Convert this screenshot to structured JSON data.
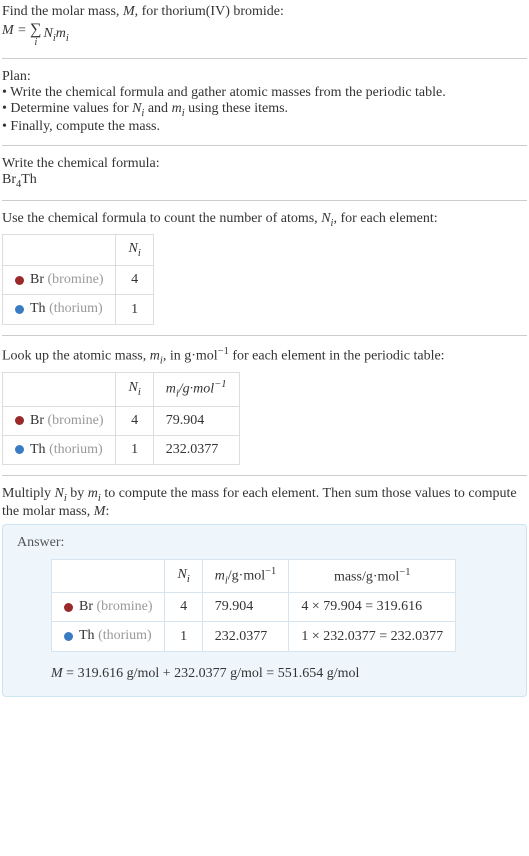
{
  "intro": {
    "line1_pre": "Find the molar mass, ",
    "line1_M": "M",
    "line1_post": ", for thorium(IV) bromide:",
    "eq_lhs": "M",
    "eq_eq": " = ",
    "eq_sigma": "∑",
    "eq_idx": "i",
    "eq_rhs_N": "N",
    "eq_rhs_Ni": "i",
    "eq_rhs_m": "m",
    "eq_rhs_mi": "i"
  },
  "plan": {
    "title": "Plan:",
    "b1": "• Write the chemical formula and gather atomic masses from the periodic table.",
    "b2_pre": "• Determine values for ",
    "b2_N": "N",
    "b2_Ni": "i",
    "b2_mid": " and ",
    "b2_m": "m",
    "b2_mi": "i",
    "b2_post": " using these items.",
    "b3": "• Finally, compute the mass."
  },
  "formula": {
    "title": "Write the chemical formula:",
    "part1": "Br",
    "sub1": "4",
    "part2": "Th"
  },
  "count": {
    "text_pre": "Use the chemical formula to count the number of atoms, ",
    "N": "N",
    "Ni": "i",
    "text_post": ", for each element:",
    "header_N": "N",
    "header_Ni": "i",
    "rows": [
      {
        "dot_color": "#9a2a2a",
        "sym": "Br",
        "name": "(bromine)",
        "n": "4"
      },
      {
        "dot_color": "#3a7cc4",
        "sym": "Th",
        "name": "(thorium)",
        "n": "1"
      }
    ]
  },
  "mass": {
    "text_pre": "Look up the atomic mass, ",
    "m": "m",
    "mi": "i",
    "text_mid": ", in g·mol",
    "text_sup": "−1",
    "text_post": " for each element in the periodic table:",
    "h_N": "N",
    "h_Ni": "i",
    "h_m": "m",
    "h_mi": "i",
    "h_unit_pre": "/g·mol",
    "h_unit_sup": "−1",
    "rows": [
      {
        "dot_color": "#9a2a2a",
        "sym": "Br",
        "name": "(bromine)",
        "n": "4",
        "m": "79.904"
      },
      {
        "dot_color": "#3a7cc4",
        "sym": "Th",
        "name": "(thorium)",
        "n": "1",
        "m": "232.0377"
      }
    ]
  },
  "compute": {
    "text_pre": "Multiply ",
    "N": "N",
    "Ni": "i",
    "text_mid1": " by ",
    "m": "m",
    "mi": "i",
    "text_mid2": " to compute the mass for each element. Then sum those values to compute the molar mass, ",
    "M": "M",
    "text_post": ":"
  },
  "answer": {
    "title": "Answer:",
    "h_N": "N",
    "h_Ni": "i",
    "h_m": "m",
    "h_mi": "i",
    "h_unit_pre": "/g·mol",
    "h_unit_sup": "−1",
    "h_mass_pre": "mass/g·mol",
    "h_mass_sup": "−1",
    "rows": [
      {
        "dot_color": "#9a2a2a",
        "sym": "Br",
        "name": "(bromine)",
        "n": "4",
        "m": "79.904",
        "calc": "4 × 79.904 = 319.616"
      },
      {
        "dot_color": "#3a7cc4",
        "sym": "Th",
        "name": "(thorium)",
        "n": "1",
        "m": "232.0377",
        "calc": "1 × 232.0377 = 232.0377"
      }
    ],
    "final_M": "M",
    "final_text": " = 319.616 g/mol + 232.0377 g/mol = 551.654 g/mol"
  },
  "colors": {
    "text": "#333333",
    "muted": "#999999",
    "border": "#dddddd",
    "answer_bg": "#eef6fb",
    "answer_border": "#cde5f2"
  }
}
